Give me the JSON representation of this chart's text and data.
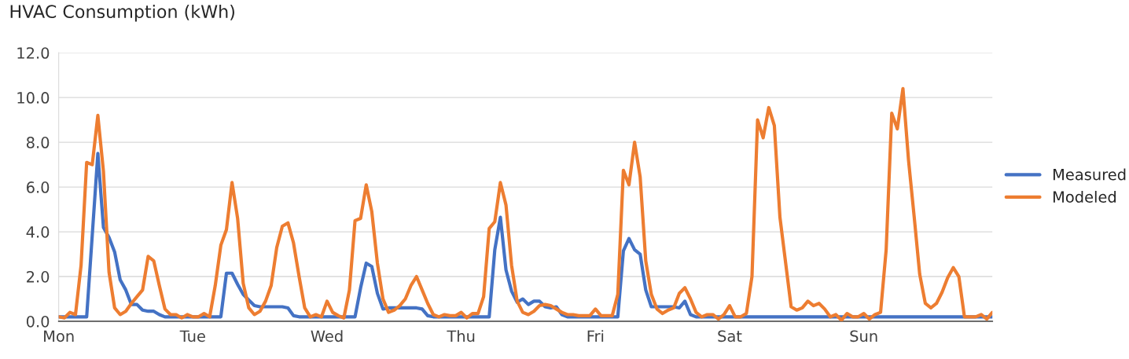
{
  "chart_data": {
    "type": "line",
    "title": "HVAC Consumption (kWh)",
    "categories": [
      "Mon",
      null,
      null,
      null,
      null,
      null,
      null,
      null,
      null,
      null,
      null,
      null,
      null,
      null,
      null,
      null,
      null,
      null,
      null,
      null,
      null,
      null,
      null,
      null,
      "Tue",
      null,
      null,
      null,
      null,
      null,
      null,
      null,
      null,
      null,
      null,
      null,
      null,
      null,
      null,
      null,
      null,
      null,
      null,
      null,
      null,
      null,
      null,
      null,
      "Wed",
      null,
      null,
      null,
      null,
      null,
      null,
      null,
      null,
      null,
      null,
      null,
      null,
      null,
      null,
      null,
      null,
      null,
      null,
      null,
      null,
      null,
      null,
      null,
      "Thu",
      null,
      null,
      null,
      null,
      null,
      null,
      null,
      null,
      null,
      null,
      null,
      null,
      null,
      null,
      null,
      null,
      null,
      null,
      null,
      null,
      null,
      null,
      null,
      "Fri",
      null,
      null,
      null,
      null,
      null,
      null,
      null,
      null,
      null,
      null,
      null,
      null,
      null,
      null,
      null,
      null,
      null,
      null,
      null,
      null,
      null,
      null,
      null,
      "Sat",
      null,
      null,
      null,
      null,
      null,
      null,
      null,
      null,
      null,
      null,
      null,
      null,
      null,
      null,
      null,
      null,
      null,
      null,
      null,
      null,
      null,
      null,
      null,
      "Sun",
      null,
      null,
      null,
      null,
      null,
      null,
      null,
      null,
      null,
      null,
      null,
      null,
      null,
      null,
      null,
      null,
      null,
      null,
      null,
      null,
      null,
      null,
      null
    ],
    "series": [
      {
        "name": "Measured",
        "color": "#4472c4",
        "values": [
          0.2,
          0.2,
          0.2,
          0.2,
          0.2,
          0.2,
          3.85,
          7.5,
          4.2,
          3.75,
          3.1,
          1.85,
          1.4,
          0.75,
          0.75,
          0.5,
          0.45,
          0.45,
          0.3,
          0.2,
          0.2,
          0.2,
          0.2,
          0.2,
          0.2,
          0.2,
          0.2,
          0.2,
          0.2,
          0.2,
          2.15,
          2.15,
          1.65,
          1.2,
          0.95,
          0.7,
          0.65,
          0.65,
          0.65,
          0.65,
          0.65,
          0.6,
          0.25,
          0.2,
          0.2,
          0.2,
          0.2,
          0.2,
          0.2,
          0.2,
          0.2,
          0.2,
          0.2,
          0.2,
          1.5,
          2.6,
          2.45,
          1.25,
          0.55,
          0.6,
          0.6,
          0.6,
          0.6,
          0.6,
          0.6,
          0.55,
          0.25,
          0.2,
          0.2,
          0.2,
          0.2,
          0.2,
          0.2,
          0.2,
          0.2,
          0.2,
          0.2,
          0.2,
          3.2,
          4.65,
          2.3,
          1.35,
          0.85,
          1.0,
          0.75,
          0.9,
          0.9,
          0.65,
          0.6,
          0.65,
          0.3,
          0.2,
          0.2,
          0.2,
          0.2,
          0.2,
          0.2,
          0.2,
          0.2,
          0.2,
          0.2,
          3.15,
          3.7,
          3.2,
          3.0,
          1.4,
          0.65,
          0.65,
          0.65,
          0.65,
          0.65,
          0.6,
          0.9,
          0.3,
          0.2,
          0.2,
          0.2,
          0.2,
          0.2,
          0.2,
          0.2,
          0.2,
          0.2,
          0.2,
          0.2,
          0.2,
          0.2,
          0.2,
          0.2,
          0.2,
          0.2,
          0.2,
          0.2,
          0.2,
          0.2,
          0.2,
          0.2,
          0.2,
          0.2,
          0.2,
          0.2,
          0.2,
          0.2,
          0.2,
          0.2,
          0.2,
          0.2,
          0.2,
          0.2,
          0.2,
          0.2,
          0.2,
          0.2,
          0.2,
          0.2,
          0.2,
          0.2,
          0.2,
          0.2,
          0.2,
          0.2,
          0.2,
          0.2,
          0.2,
          0.2,
          0.2,
          0.2,
          0.2
        ]
      },
      {
        "name": "Modeled",
        "color": "#ed7d31",
        "values": [
          0.2,
          0.15,
          0.4,
          0.3,
          2.5,
          7.1,
          7.0,
          9.2,
          6.7,
          2.2,
          0.6,
          0.3,
          0.45,
          0.8,
          1.1,
          1.4,
          2.9,
          2.7,
          1.6,
          0.55,
          0.3,
          0.3,
          0.15,
          0.3,
          0.2,
          0.2,
          0.35,
          0.2,
          1.6,
          3.4,
          4.1,
          6.2,
          4.6,
          1.7,
          0.6,
          0.3,
          0.45,
          0.9,
          1.6,
          3.3,
          4.25,
          4.4,
          3.5,
          2.0,
          0.6,
          0.2,
          0.3,
          0.2,
          0.9,
          0.4,
          0.25,
          0.15,
          1.4,
          4.5,
          4.6,
          6.1,
          4.9,
          2.6,
          1.0,
          0.4,
          0.5,
          0.7,
          1.0,
          1.6,
          2.0,
          1.4,
          0.8,
          0.3,
          0.2,
          0.3,
          0.25,
          0.25,
          0.4,
          0.15,
          0.35,
          0.35,
          1.1,
          4.15,
          4.45,
          6.2,
          5.2,
          2.5,
          0.9,
          0.4,
          0.3,
          0.45,
          0.7,
          0.75,
          0.7,
          0.55,
          0.4,
          0.3,
          0.3,
          0.25,
          0.25,
          0.25,
          0.55,
          0.25,
          0.25,
          0.25,
          1.2,
          6.75,
          6.1,
          8.0,
          6.45,
          2.7,
          1.2,
          0.55,
          0.35,
          0.5,
          0.6,
          1.25,
          1.5,
          1.0,
          0.4,
          0.2,
          0.3,
          0.3,
          0.1,
          0.3,
          0.7,
          0.2,
          0.2,
          0.35,
          2.0,
          9.0,
          8.2,
          9.55,
          8.75,
          4.65,
          2.65,
          0.65,
          0.5,
          0.6,
          0.9,
          0.7,
          0.8,
          0.55,
          0.2,
          0.3,
          0.05,
          0.35,
          0.2,
          0.2,
          0.35,
          0.1,
          0.3,
          0.4,
          3.2,
          9.3,
          8.6,
          10.4,
          7.2,
          4.7,
          2.1,
          0.8,
          0.6,
          0.8,
          1.3,
          1.95,
          2.4,
          2.0,
          0.2,
          0.2,
          0.2,
          0.3,
          0.1,
          0.4
        ]
      }
    ],
    "ylim": [
      0,
      12
    ],
    "yticks": [
      {
        "value": 0,
        "label": "0.0"
      },
      {
        "value": 2,
        "label": "2.0"
      },
      {
        "value": 4,
        "label": "4.0"
      },
      {
        "value": 6,
        "label": "6.0"
      },
      {
        "value": 8,
        "label": "8.0"
      },
      {
        "value": 10,
        "label": "10.0"
      },
      {
        "value": 12,
        "label": "12.0"
      }
    ],
    "grid": "y",
    "legend": "right",
    "marker": "none",
    "line_style": "solid"
  }
}
